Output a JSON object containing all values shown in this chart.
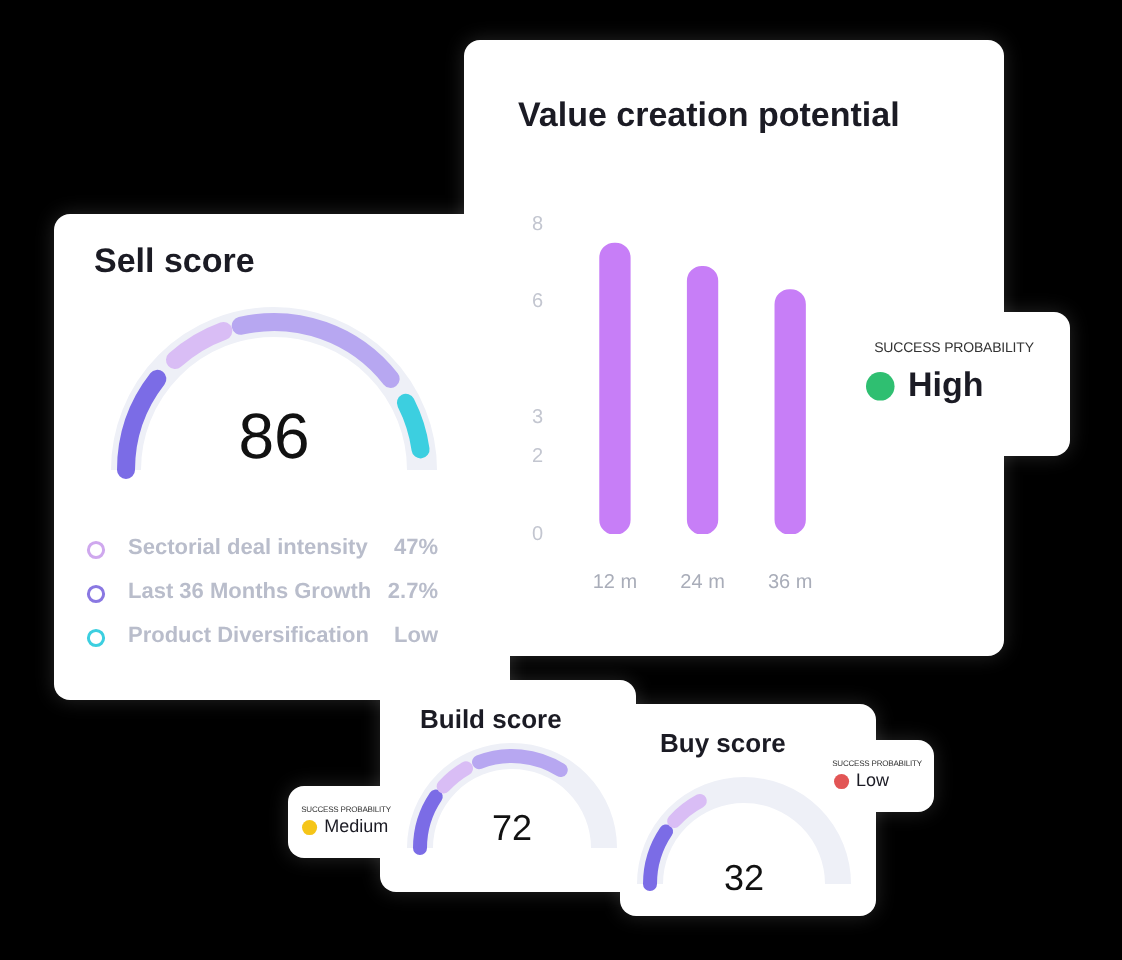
{
  "chart_data": [
    {
      "type": "bar",
      "title": "Value creation potential",
      "categories": [
        "12 m",
        "24 m",
        "36 m"
      ],
      "values": [
        7.5,
        6.9,
        6.3
      ],
      "color": "#c77ef7",
      "ylim": [
        0,
        8
      ],
      "yticks": [
        0,
        2,
        3,
        6,
        8
      ]
    },
    {
      "type": "other",
      "title": "Sell score",
      "annotations": [
        "86",
        "Sectorial deal intensity",
        "47%",
        "Last 36 Months Growth",
        "2.7%",
        "Product Diversification",
        "Low"
      ]
    },
    {
      "type": "other",
      "title": "SUCCESS PROBABILITY",
      "annotations": [
        "High"
      ]
    },
    {
      "type": "other",
      "title": "Build score",
      "annotations": [
        "72"
      ]
    },
    {
      "type": "other",
      "title": "SUCCESS PROBABILITY",
      "annotations": [
        "Medium"
      ]
    },
    {
      "type": "other",
      "title": "Buy score",
      "annotations": [
        "32"
      ]
    },
    {
      "type": "other",
      "title": "SUCCESS PROBABILITY",
      "annotations": [
        "Low"
      ]
    }
  ]
}
